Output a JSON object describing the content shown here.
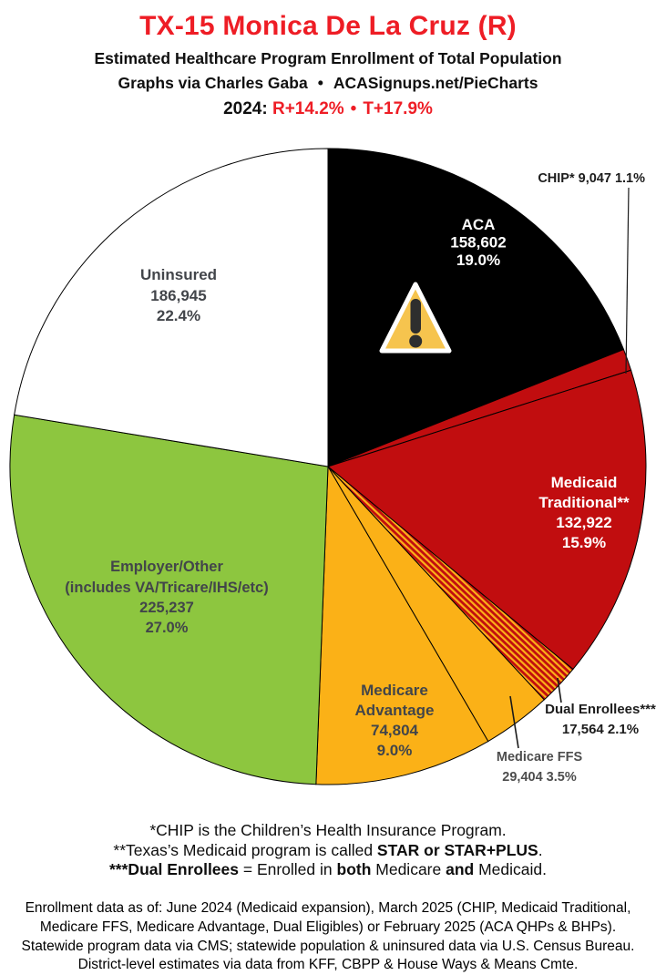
{
  "header": {
    "title": "TX-15 Monica De La Cruz (R)",
    "subtitle": "Estimated Healthcare Program Enrollment of Total Population",
    "credit_left": "Graphs via Charles Gaba",
    "credit_bullet": "•",
    "credit_right": "ACASignups.net/PieCharts",
    "year_label": "2024:",
    "lean_r": "R+14.2%",
    "lean_bullet": "•",
    "lean_t": "T+17.9%"
  },
  "colors": {
    "title_red": "#EE1D25",
    "slice_black": "#000000",
    "slice_red": "#C10D0F",
    "slice_gold": "#FBB117",
    "slice_green": "#8DC63F",
    "slice_white": "#FFFFFF",
    "warning_fill": "#F6C44E",
    "label_gray": "#42454a"
  },
  "icons": {
    "warning": "warning-triangle-icon"
  },
  "chart_data": {
    "type": "pie",
    "title": "Estimated Healthcare Program Enrollment of Total Population",
    "district": "TX-15",
    "representative": "Monica De La Cruz (R)",
    "start_angle_deg": 0,
    "direction": "clockwise",
    "legend_position": "in-slice labels",
    "slices": [
      {
        "name": "ACA",
        "value": 158602,
        "pct": 19.0,
        "color": "#000000",
        "label_lines": [
          "ACA",
          "158,602",
          "19.0%"
        ]
      },
      {
        "name": "CHIP",
        "value": 9047,
        "pct": 1.1,
        "color": "#C10D0F",
        "label_lines": [
          "CHIP* 9,047 1.1%"
        ]
      },
      {
        "name": "Medicaid Traditional",
        "value": 132922,
        "pct": 15.9,
        "color": "#C10D0F",
        "label_lines": [
          "Medicaid",
          "Traditional**",
          "132,922",
          "15.9%"
        ]
      },
      {
        "name": "Dual Enrollees",
        "value": 17564,
        "pct": 2.1,
        "color": "stripes",
        "label_lines": [
          "Dual Enrollees***",
          "17,564 2.1%"
        ]
      },
      {
        "name": "Medicare FFS",
        "value": 29404,
        "pct": 3.5,
        "color": "#FBB117",
        "label_lines": [
          "Medicare FFS",
          "29,404 3.5%"
        ]
      },
      {
        "name": "Medicare Advantage",
        "value": 74804,
        "pct": 9.0,
        "color": "#FBB117",
        "label_lines": [
          "Medicare",
          "Advantage",
          "74,804",
          "9.0%"
        ]
      },
      {
        "name": "Employer/Other",
        "value": 225237,
        "pct": 27.0,
        "color": "#8DC63F",
        "label_lines": [
          "Employer/Other",
          "(includes VA/Tricare/IHS/etc)",
          "225,237",
          "27.0%"
        ]
      },
      {
        "name": "Uninsured",
        "value": 186945,
        "pct": 22.4,
        "color": "#FFFFFF",
        "label_lines": [
          "Uninsured",
          "186,945",
          "22.4%"
        ]
      }
    ]
  },
  "footnotes": {
    "line1": "*CHIP is the Children’s Health Insurance Program.",
    "line2_pre": "**Texas’s Medicaid program is called ",
    "line2_bold": "STAR or STAR+PLUS",
    "line2_end": ".",
    "line3_bold1": "***Dual Enrollees",
    "line3_mid1": " = Enrolled in ",
    "line3_bold2": "both",
    "line3_mid2": " Medicare ",
    "line3_bold3": "and",
    "line3_end": " Medicaid."
  },
  "sources": [
    "Enrollment data as of: June 2024 (Medicaid expansion), March 2025 (CHIP, Medicaid Traditional,",
    "Medicare FFS, Medicare Advantage, Dual Eligibles) or February 2025 (ACA QHPs & BHPs).",
    "Statewide program data via CMS; statewide population & uninsured data via U.S. Census Bureau.",
    "District-level estimates via data from KFF, CBPP & House Ways & Means Cmte."
  ]
}
